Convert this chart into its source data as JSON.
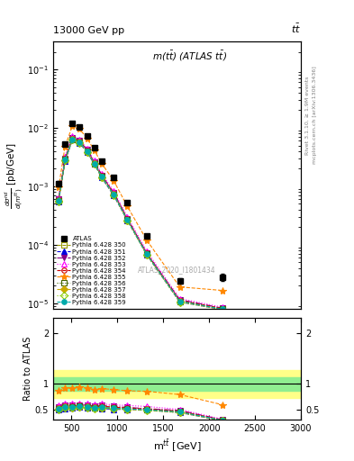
{
  "title_top": "13000 GeV pp",
  "title_right": "tt",
  "plot_title": "m(t#bar{t}) (ATLAS t#bar{t})",
  "watermark": "ATLAS_2020_I1801434",
  "xlim": [
    300,
    3000
  ],
  "ylim_main": [
    8e-06,
    0.3
  ],
  "ylim_ratio": [
    0.3,
    2.3
  ],
  "x_data": [
    360,
    430,
    510,
    590,
    670,
    750,
    830,
    960,
    1110,
    1320,
    1680,
    2150
  ],
  "atlas_y": [
    0.0011,
    0.0052,
    0.0118,
    0.0102,
    0.0072,
    0.0046,
    0.0027,
    0.0014,
    0.00052,
    0.00014,
    2.4e-05,
    2.8e-05
  ],
  "atlas_yerr": [
    0.00012,
    0.00035,
    0.0005,
    0.00045,
    0.00035,
    0.00028,
    0.00018,
    9e-05,
    3.5e-05,
    1.2e-05,
    2.5e-06,
    4e-06
  ],
  "series": [
    {
      "label": "Pythia 6.428 350",
      "color": "#999900",
      "marker": "s",
      "marker_fill": false,
      "linestyle": "--",
      "y": [
        0.00058,
        0.0029,
        0.0065,
        0.0058,
        0.004,
        0.0025,
        0.0015,
        0.00075,
        0.00027,
        7e-05,
        1.1e-05,
        8e-06
      ]
    },
    {
      "label": "Pythia 6.428 351",
      "color": "#0000dd",
      "marker": "^",
      "marker_fill": true,
      "linestyle": "--",
      "y": [
        0.00055,
        0.0027,
        0.0062,
        0.0055,
        0.0038,
        0.0024,
        0.0014,
        0.0007,
        0.00026,
        6.8e-05,
        1.05e-05,
        7.8e-06
      ]
    },
    {
      "label": "Pythia 6.428 352",
      "color": "#880088",
      "marker": "v",
      "marker_fill": true,
      "linestyle": "-.",
      "y": [
        0.0006,
        0.003,
        0.0068,
        0.006,
        0.0042,
        0.0026,
        0.00155,
        0.00078,
        0.00028,
        7.2e-05,
        1.15e-05,
        8.2e-06
      ]
    },
    {
      "label": "Pythia 6.428 353",
      "color": "#ff00ff",
      "marker": "^",
      "marker_fill": false,
      "linestyle": ":",
      "y": [
        0.00065,
        0.0032,
        0.0072,
        0.0063,
        0.0044,
        0.00275,
        0.00165,
        0.00082,
        0.0003,
        7.8e-05,
        1.2e-05,
        8.5e-06
      ]
    },
    {
      "label": "Pythia 6.428 354",
      "color": "#cc0000",
      "marker": "o",
      "marker_fill": false,
      "linestyle": "--",
      "y": [
        0.00059,
        0.00295,
        0.0066,
        0.0059,
        0.0041,
        0.00255,
        0.00152,
        0.00076,
        0.000275,
        7.1e-05,
        1.12e-05,
        8.1e-06
      ]
    },
    {
      "label": "Pythia 6.428 355",
      "color": "#ff8800",
      "marker": "*",
      "marker_fill": true,
      "linestyle": "--",
      "y": [
        0.00095,
        0.0048,
        0.0108,
        0.0095,
        0.0066,
        0.0041,
        0.00245,
        0.00125,
        0.00045,
        0.00012,
        1.9e-05,
        1.65e-05
      ]
    },
    {
      "label": "Pythia 6.428 356",
      "color": "#446600",
      "marker": "s",
      "marker_fill": false,
      "linestyle": ":",
      "y": [
        0.00057,
        0.00285,
        0.0064,
        0.0057,
        0.00395,
        0.00245,
        0.00145,
        0.00073,
        0.000265,
        6.9e-05,
        1.08e-05,
        7.9e-06
      ]
    },
    {
      "label": "Pythia 6.428 357",
      "color": "#ccaa00",
      "marker": "D",
      "marker_fill": true,
      "linestyle": "--",
      "y": [
        0.00056,
        0.0028,
        0.0063,
        0.0056,
        0.0039,
        0.00242,
        0.00143,
        0.00072,
        0.00026,
        6.8e-05,
        1.06e-05,
        7.8e-06
      ]
    },
    {
      "label": "Pythia 6.428 358",
      "color": "#88cc00",
      "marker": "D",
      "marker_fill": false,
      "linestyle": ":",
      "y": [
        0.00055,
        0.00275,
        0.0062,
        0.0055,
        0.00382,
        0.00238,
        0.00141,
        0.00071,
        0.000258,
        6.7e-05,
        1.04e-05,
        7.7e-06
      ]
    },
    {
      "label": "Pythia 6.428 359",
      "color": "#00aaaa",
      "marker": "o",
      "marker_fill": true,
      "linestyle": "--",
      "y": [
        0.00057,
        0.00285,
        0.0064,
        0.0057,
        0.00395,
        0.00246,
        0.00146,
        0.00073,
        0.000265,
        6.9e-05,
        1.08e-05,
        7.9e-06
      ]
    }
  ],
  "band_inner_color": "#90ee90",
  "band_outer_color": "#ffff88",
  "band_xlo": 300,
  "band_xhi": 3000,
  "band_inner_lo": 0.87,
  "band_inner_hi": 1.13,
  "band_outer_lo": 0.72,
  "band_outer_hi": 1.28,
  "right_label1": "Rivet 3.1.10, ≥ 1.9M events",
  "right_label2": "mcplots.cern.ch [arXiv:1306.3436]"
}
